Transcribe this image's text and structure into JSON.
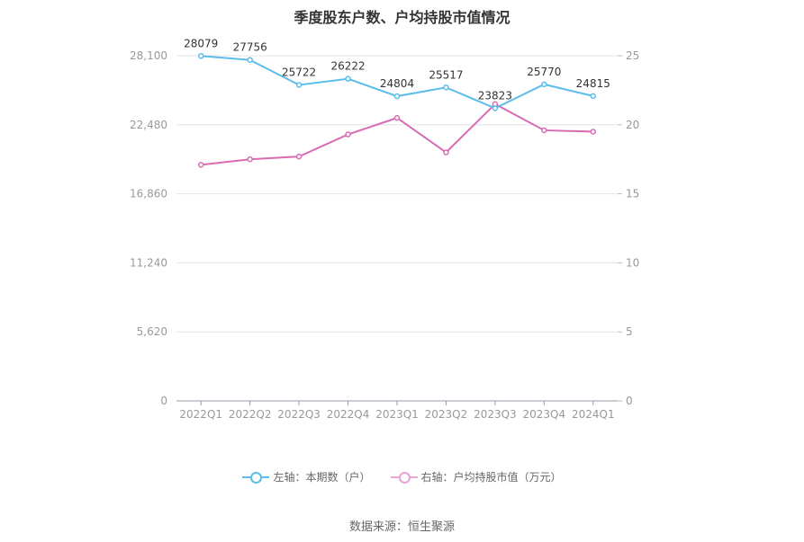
{
  "title": "季度股东户数、户均持股市值情况",
  "source": "数据来源：恒生聚源",
  "chart_data": {
    "type": "line",
    "categories": [
      "2022Q1",
      "2022Q2",
      "2022Q3",
      "2022Q4",
      "2023Q1",
      "2023Q2",
      "2023Q3",
      "2023Q4",
      "2024Q1"
    ],
    "left_axis": {
      "ticks": [
        "0",
        "5,620",
        "11,240",
        "16,860",
        "22,480",
        "28,100"
      ],
      "ylim": [
        0,
        28100
      ]
    },
    "right_axis": {
      "ticks": [
        "0",
        "5",
        "10",
        "15",
        "20",
        "25"
      ],
      "ylim": [
        0,
        25
      ]
    },
    "series": [
      {
        "name": "左轴：本期数（户）",
        "axis": "left",
        "color": "#5bbdeb",
        "values": [
          28079,
          27756,
          25722,
          26222,
          24804,
          25517,
          23823,
          25770,
          24815
        ],
        "labels": [
          "28079",
          "27756",
          "25722",
          "26222",
          "24804",
          "25517",
          "23823",
          "25770",
          "24815"
        ]
      },
      {
        "name": "右轴：户均持股市值（万元）",
        "axis": "right",
        "color": "#d86bb4",
        "values": [
          17.1,
          17.5,
          17.7,
          19.3,
          20.5,
          18.0,
          21.5,
          19.6,
          19.5
        ]
      }
    ],
    "grid": true,
    "legend_position": "bottom"
  }
}
